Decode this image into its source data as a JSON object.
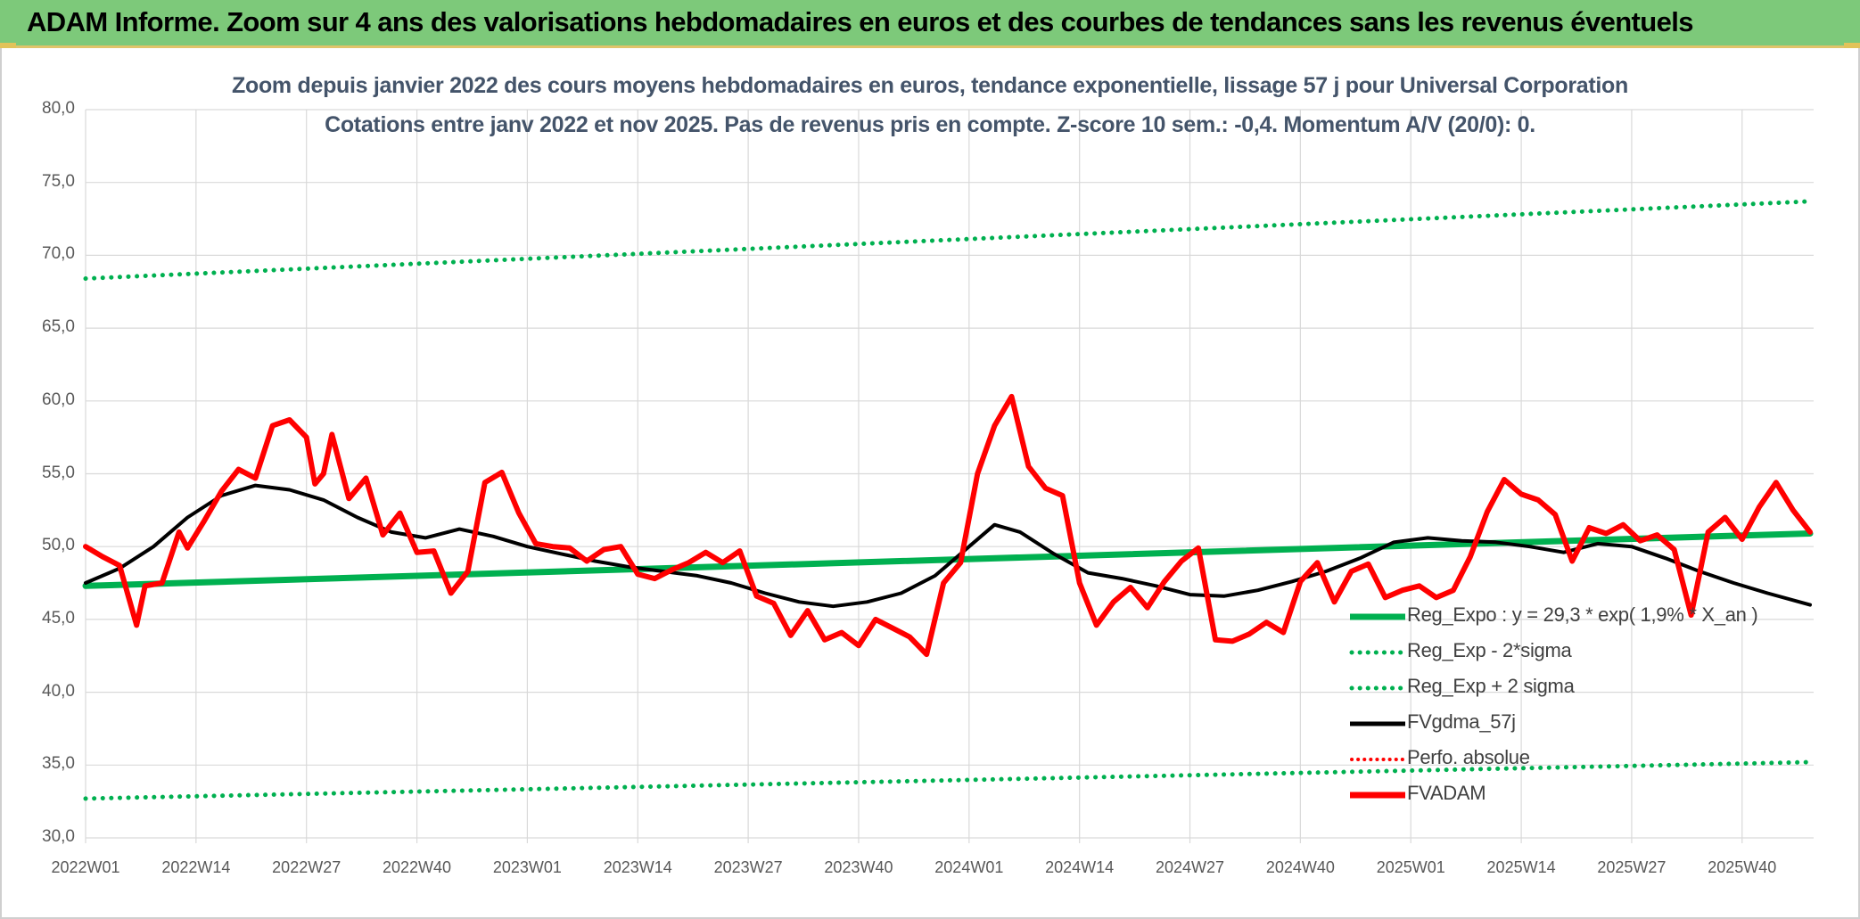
{
  "banner": {
    "title": "ADAM Informe. Zoom sur 4 ans des valorisations hebdomadaires en euros et des courbes de tendances sans les revenus éventuels"
  },
  "chart_titles": [
    "Zoom depuis janvier 2022 des cours moyens hebdomadaires en euros, tendance exponentielle, lissage 57 j pour Universal Corporation",
    "Cotations entre janv 2022 et nov 2025. Pas de revenus pris en compte. Z-score 10 sem.: -0,4. Momentum A/V (20/0): 0."
  ],
  "legend": [
    {
      "label": "Reg_Expo : y = 29,3 * exp( 1,9% *  X_an )",
      "color": "#00b050",
      "style": "solid"
    },
    {
      "label": "Reg_Exp - 2*sigma",
      "color": "#00b050",
      "style": "dotted"
    },
    {
      "label": "Reg_Exp + 2 sigma",
      "color": "#00b050",
      "style": "dotted"
    },
    {
      "label": "FVgdma_57j",
      "color": "#000000",
      "style": "solid"
    },
    {
      "label": "Perfo. absolue",
      "color": "#ff0000",
      "style": "dotted"
    },
    {
      "label": "FVADAM",
      "color": "#ff0000",
      "style": "solid"
    }
  ],
  "chart_data": {
    "type": "line",
    "weeks": 204,
    "x_start": "2022W01",
    "x_end": "2025W48",
    "x_tick_labels": [
      "2022W01",
      "2022W14",
      "2022W27",
      "2022W40",
      "2023W01",
      "2023W14",
      "2023W27",
      "2023W40",
      "2024W01",
      "2024W14",
      "2024W27",
      "2024W40",
      "2025W01",
      "2025W14",
      "2025W27",
      "2025W40"
    ],
    "y_tick_labels": [
      "30,0",
      "35,0",
      "40,0",
      "45,0",
      "50,0",
      "55,0",
      "60,0",
      "65,0",
      "70,0",
      "75,0",
      "80,0"
    ],
    "ylim": [
      30,
      80
    ],
    "grid": true,
    "legend_position": "bottom-right",
    "series": [
      {
        "name": "Reg_Expo : y = 29,3 * exp( 1,9% *  X_an )",
        "color": "#00b050",
        "style": "solid",
        "points": [
          [
            0,
            47.3
          ],
          [
            203,
            50.9
          ]
        ]
      },
      {
        "name": "Reg_Exp - 2*sigma",
        "color": "#00b050",
        "style": "dotted",
        "points": [
          [
            0,
            32.7
          ],
          [
            203,
            35.2
          ]
        ]
      },
      {
        "name": "Reg_Exp + 2 sigma",
        "color": "#00b050",
        "style": "dotted",
        "points": [
          [
            0,
            68.4
          ],
          [
            203,
            73.7
          ]
        ]
      },
      {
        "name": "FVgdma_57j",
        "color": "#000000",
        "style": "solid",
        "points": [
          [
            0,
            47.5
          ],
          [
            4,
            48.5
          ],
          [
            8,
            50.0
          ],
          [
            12,
            52.0
          ],
          [
            16,
            53.5
          ],
          [
            20,
            54.2
          ],
          [
            24,
            53.9
          ],
          [
            28,
            53.2
          ],
          [
            32,
            52.0
          ],
          [
            36,
            51.0
          ],
          [
            40,
            50.6
          ],
          [
            44,
            51.2
          ],
          [
            48,
            50.7
          ],
          [
            52,
            50.0
          ],
          [
            56,
            49.5
          ],
          [
            60,
            49.0
          ],
          [
            64,
            48.6
          ],
          [
            68,
            48.3
          ],
          [
            72,
            48.0
          ],
          [
            76,
            47.5
          ],
          [
            80,
            46.8
          ],
          [
            84,
            46.2
          ],
          [
            88,
            45.9
          ],
          [
            92,
            46.2
          ],
          [
            96,
            46.8
          ],
          [
            100,
            48.0
          ],
          [
            104,
            50.0
          ],
          [
            107,
            51.5
          ],
          [
            110,
            51.0
          ],
          [
            114,
            49.5
          ],
          [
            118,
            48.2
          ],
          [
            122,
            47.8
          ],
          [
            126,
            47.3
          ],
          [
            130,
            46.7
          ],
          [
            134,
            46.6
          ],
          [
            138,
            47.0
          ],
          [
            142,
            47.6
          ],
          [
            146,
            48.3
          ],
          [
            150,
            49.2
          ],
          [
            154,
            50.3
          ],
          [
            158,
            50.6
          ],
          [
            162,
            50.4
          ],
          [
            166,
            50.3
          ],
          [
            170,
            50.0
          ],
          [
            174,
            49.6
          ],
          [
            178,
            50.2
          ],
          [
            182,
            50.0
          ],
          [
            186,
            49.2
          ],
          [
            190,
            48.3
          ],
          [
            194,
            47.5
          ],
          [
            198,
            46.8
          ],
          [
            203,
            46.0
          ]
        ]
      },
      {
        "name": "FVADAM",
        "color": "#ff0000",
        "style": "solid",
        "points": [
          [
            0,
            50.0
          ],
          [
            2,
            49.3
          ],
          [
            4,
            48.7
          ],
          [
            6,
            44.6
          ],
          [
            7,
            47.3
          ],
          [
            9,
            47.5
          ],
          [
            11,
            51.0
          ],
          [
            12,
            49.9
          ],
          [
            14,
            51.8
          ],
          [
            16,
            53.8
          ],
          [
            18,
            55.3
          ],
          [
            20,
            54.7
          ],
          [
            22,
            58.3
          ],
          [
            24,
            58.7
          ],
          [
            26,
            57.5
          ],
          [
            27,
            54.3
          ],
          [
            28,
            55.0
          ],
          [
            29,
            57.7
          ],
          [
            31,
            53.3
          ],
          [
            33,
            54.7
          ],
          [
            35,
            50.8
          ],
          [
            37,
            52.3
          ],
          [
            39,
            49.6
          ],
          [
            41,
            49.7
          ],
          [
            43,
            46.8
          ],
          [
            45,
            48.3
          ],
          [
            47,
            54.4
          ],
          [
            49,
            55.1
          ],
          [
            51,
            52.3
          ],
          [
            53,
            50.2
          ],
          [
            55,
            50.0
          ],
          [
            57,
            49.9
          ],
          [
            59,
            49.0
          ],
          [
            61,
            49.8
          ],
          [
            63,
            50.0
          ],
          [
            65,
            48.1
          ],
          [
            67,
            47.8
          ],
          [
            69,
            48.4
          ],
          [
            71,
            48.9
          ],
          [
            73,
            49.6
          ],
          [
            75,
            48.9
          ],
          [
            77,
            49.7
          ],
          [
            79,
            46.6
          ],
          [
            81,
            46.1
          ],
          [
            83,
            43.9
          ],
          [
            85,
            45.6
          ],
          [
            87,
            43.6
          ],
          [
            89,
            44.1
          ],
          [
            91,
            43.2
          ],
          [
            93,
            45.0
          ],
          [
            95,
            44.4
          ],
          [
            97,
            43.8
          ],
          [
            99,
            42.6
          ],
          [
            101,
            47.5
          ],
          [
            103,
            48.9
          ],
          [
            105,
            55.0
          ],
          [
            107,
            58.3
          ],
          [
            109,
            60.3
          ],
          [
            111,
            55.5
          ],
          [
            113,
            54.0
          ],
          [
            115,
            53.5
          ],
          [
            117,
            47.5
          ],
          [
            119,
            44.6
          ],
          [
            121,
            46.2
          ],
          [
            123,
            47.2
          ],
          [
            125,
            45.8
          ],
          [
            127,
            47.6
          ],
          [
            129,
            49.0
          ],
          [
            131,
            49.9
          ],
          [
            133,
            43.6
          ],
          [
            135,
            43.5
          ],
          [
            137,
            44.0
          ],
          [
            139,
            44.8
          ],
          [
            141,
            44.1
          ],
          [
            143,
            47.6
          ],
          [
            145,
            48.9
          ],
          [
            147,
            46.2
          ],
          [
            149,
            48.3
          ],
          [
            151,
            48.8
          ],
          [
            153,
            46.5
          ],
          [
            155,
            47.0
          ],
          [
            157,
            47.3
          ],
          [
            159,
            46.5
          ],
          [
            161,
            47.0
          ],
          [
            163,
            49.3
          ],
          [
            165,
            52.4
          ],
          [
            167,
            54.6
          ],
          [
            169,
            53.6
          ],
          [
            171,
            53.2
          ],
          [
            173,
            52.2
          ],
          [
            175,
            49.0
          ],
          [
            177,
            51.3
          ],
          [
            179,
            50.9
          ],
          [
            181,
            51.5
          ],
          [
            183,
            50.4
          ],
          [
            185,
            50.8
          ],
          [
            187,
            49.8
          ],
          [
            189,
            45.3
          ],
          [
            191,
            51.0
          ],
          [
            193,
            52.0
          ],
          [
            195,
            50.5
          ],
          [
            197,
            52.7
          ],
          [
            199,
            54.4
          ],
          [
            201,
            52.5
          ],
          [
            203,
            51.0
          ]
        ]
      }
    ]
  }
}
